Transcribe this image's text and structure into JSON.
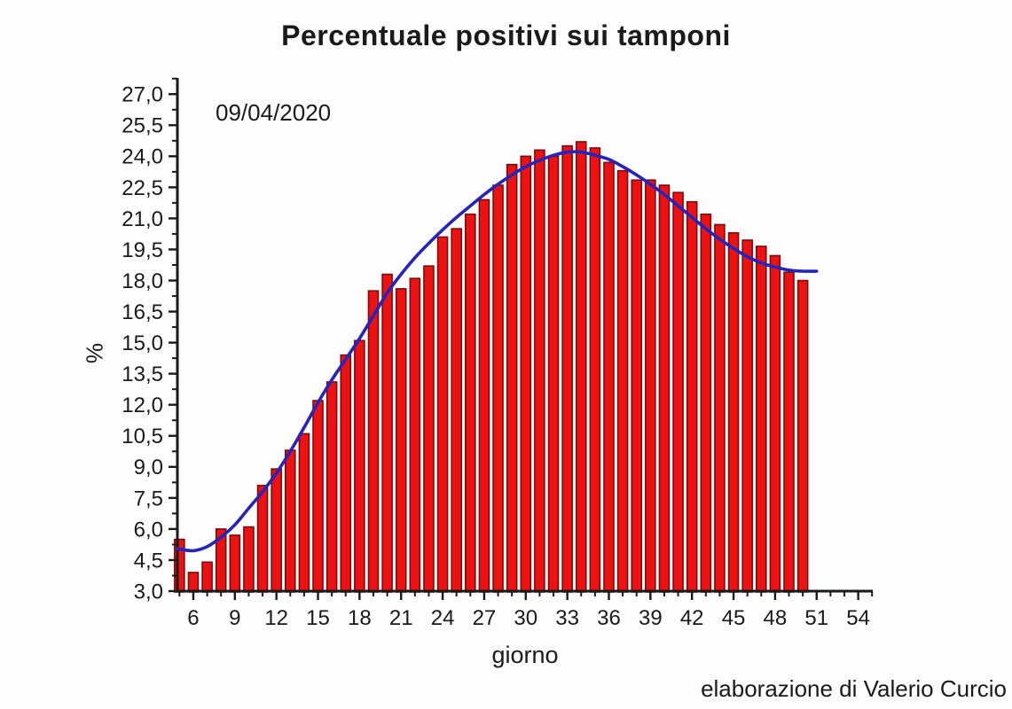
{
  "page": {
    "window_title": "Percentuale positivi sui tamponi"
  },
  "chart_data": {
    "type": "bar",
    "title": "Percentuale positivi sui tamponi",
    "annotation": "09/04/2020",
    "xlabel": "giorno",
    "ylabel": "%",
    "credit": "elaborazione di Valerio Curcio",
    "xlim": [
      4.85,
      55.05
    ],
    "ylim": [
      3,
      27.78
    ],
    "x_major_ticks": [
      6,
      9,
      12,
      15,
      18,
      21,
      24,
      27,
      30,
      33,
      36,
      39,
      42,
      45,
      48,
      51,
      54
    ],
    "x_tick_labels": [
      "6",
      "9",
      "12",
      "15",
      "18",
      "21",
      "24",
      "27",
      "30",
      "33",
      "36",
      "39",
      "42",
      "45",
      "48",
      "51",
      "54"
    ],
    "x_minor_step": 1,
    "y_major_ticks": [
      3.0,
      4.5,
      6.0,
      7.5,
      9.0,
      10.5,
      12.0,
      13.5,
      15.0,
      16.5,
      18.0,
      19.5,
      21.0,
      22.5,
      24.0,
      25.5,
      27.0
    ],
    "y_tick_labels": [
      "3,0",
      "4,5",
      "6,0",
      "7,5",
      "9,0",
      "10,5",
      "12,0",
      "13,5",
      "15,0",
      "16,5",
      "18,0",
      "19,5",
      "21,0",
      "22,5",
      "24,0",
      "25,5",
      "27,0"
    ],
    "y_minor_step": 0.75,
    "grid": false,
    "legend": "none",
    "series_name": "percentuale positivi sui tamponi",
    "categories": [
      5,
      6,
      7,
      8,
      9,
      10,
      11,
      12,
      13,
      14,
      15,
      16,
      17,
      18,
      19,
      20,
      21,
      22,
      23,
      24,
      25,
      26,
      27,
      28,
      29,
      30,
      31,
      32,
      33,
      34,
      35,
      36,
      37,
      38,
      39,
      40,
      41,
      42,
      43,
      44,
      45,
      46,
      47,
      48,
      49,
      50
    ],
    "values": [
      5.5,
      3.9,
      4.4,
      6.0,
      5.7,
      6.1,
      8.1,
      8.9,
      9.8,
      10.6,
      12.2,
      13.1,
      14.4,
      15.1,
      17.5,
      18.3,
      17.6,
      18.1,
      18.7,
      20.1,
      20.5,
      21.2,
      21.9,
      22.6,
      23.6,
      24.0,
      24.3,
      24.0,
      24.5,
      24.7,
      24.4,
      23.7,
      23.3,
      22.85,
      22.85,
      22.6,
      22.25,
      21.8,
      21.2,
      20.7,
      20.3,
      19.95,
      19.65,
      19.2,
      18.4,
      18.0
    ],
    "fit_curve": {
      "name": "fit",
      "x": [
        4.85,
        6,
        7,
        8,
        9,
        10,
        11,
        12,
        13,
        14,
        15,
        16,
        17,
        18,
        19,
        20,
        21,
        22,
        23,
        24,
        25,
        26,
        27,
        28,
        29,
        30,
        31,
        32,
        33,
        34,
        35,
        36,
        37,
        38,
        39,
        40,
        41,
        42,
        43,
        44,
        45,
        46,
        47,
        48,
        49,
        50,
        51
      ],
      "y": [
        5.05,
        4.95,
        5.15,
        5.6,
        6.2,
        7.0,
        7.8,
        8.7,
        9.75,
        10.9,
        12.1,
        13.2,
        14.2,
        15.2,
        16.3,
        17.4,
        18.3,
        19.1,
        19.8,
        20.45,
        21.05,
        21.6,
        22.15,
        22.65,
        23.1,
        23.5,
        23.8,
        24.05,
        24.2,
        24.2,
        24.05,
        23.85,
        23.5,
        23.1,
        22.65,
        22.15,
        21.6,
        21.05,
        20.5,
        20.0,
        19.55,
        19.15,
        18.85,
        18.65,
        18.5,
        18.45,
        18.45
      ]
    },
    "colors": {
      "bar_fill": "#ee1111",
      "bar_border": "#7d0b0b",
      "curve": "#2424bf",
      "axis": "#1a1a1a",
      "background": "#fdfdfd"
    }
  }
}
